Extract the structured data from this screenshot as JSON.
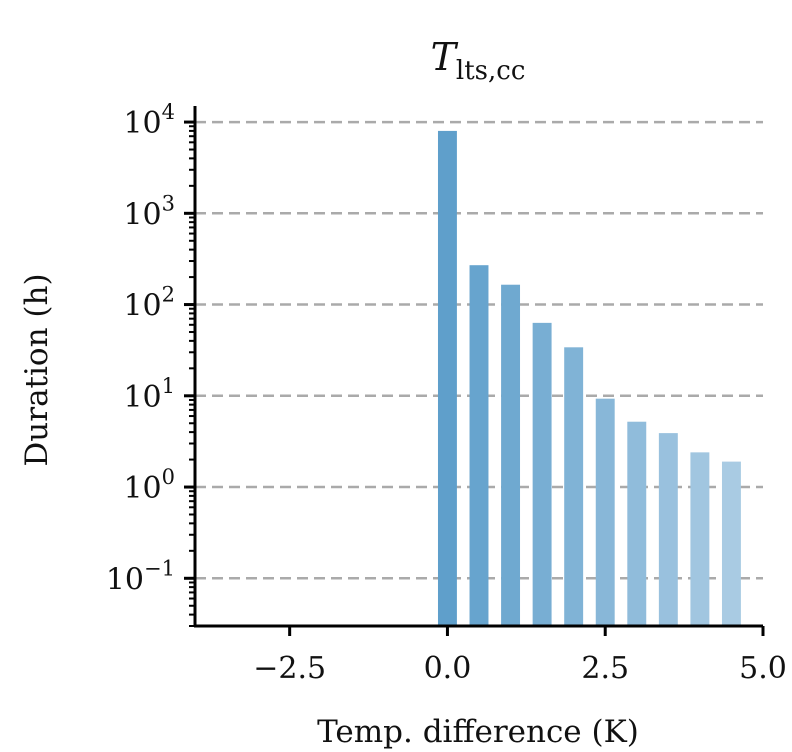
{
  "chart_data": {
    "type": "bar",
    "title": {
      "main": "T",
      "subscript": "lts,cc"
    },
    "xlabel": "Temp. difference (K)",
    "ylabel": "Duration (h)",
    "x": [
      0.0,
      0.5,
      1.0,
      1.5,
      2.0,
      2.5,
      3.0,
      3.5,
      4.0,
      4.5
    ],
    "values": [
      8000,
      270,
      165,
      63,
      34,
      9.3,
      5.2,
      3.9,
      2.4,
      1.9
    ],
    "bar_width": 0.3,
    "xlim": [
      -4.0,
      5.0
    ],
    "ylim": [
      0.03,
      15000
    ],
    "yscale": "log",
    "xticks": [
      -2.5,
      0.0,
      2.5,
      5.0
    ],
    "xtick_labels": [
      "−2.5",
      "0.0",
      "2.5",
      "5.0"
    ],
    "yticks": [
      {
        "value": 10000,
        "base": "10",
        "exp": "4"
      },
      {
        "value": 1000,
        "base": "10",
        "exp": "3"
      },
      {
        "value": 100,
        "base": "10",
        "exp": "2"
      },
      {
        "value": 10,
        "base": "10",
        "exp": "1"
      },
      {
        "value": 1,
        "base": "10",
        "exp": "0"
      },
      {
        "value": 0.1,
        "base": "10",
        "exp": "−1"
      }
    ],
    "grid": {
      "axis": "y",
      "style": "dashed",
      "color": "#aaaaaa"
    },
    "bar_color_start": "#5f9fcb",
    "bar_color_end": "#a9cbe3",
    "axis_color": "#000000"
  }
}
